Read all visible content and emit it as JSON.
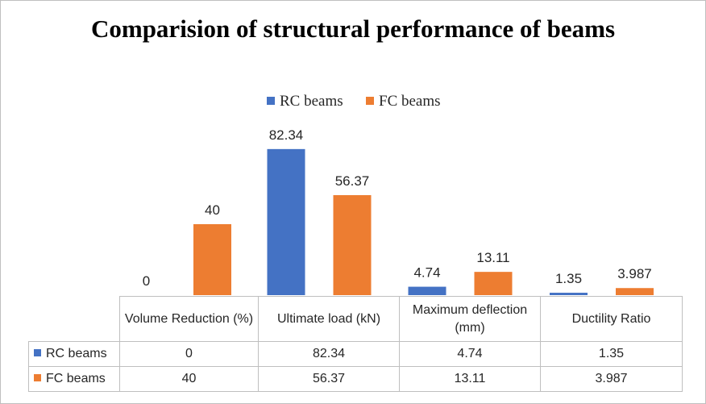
{
  "chart_data": {
    "type": "bar",
    "title": "Comparision of structural performance of beams",
    "categories": [
      "Volume Reduction (%)",
      "Ultimate load (kN)",
      "Maximum deflection (mm)",
      "Ductility Ratio"
    ],
    "series": [
      {
        "name": "RC beams",
        "color": "#4472c4",
        "values": [
          0,
          82.34,
          4.74,
          1.35
        ],
        "labels": [
          "0",
          "82.34",
          "4.74",
          "1.35"
        ]
      },
      {
        "name": "FC beams",
        "color": "#ed7d31",
        "values": [
          40,
          56.37,
          13.11,
          3.987
        ],
        "labels": [
          "40",
          "56.37",
          "13.11",
          "3.987"
        ]
      }
    ],
    "ylim": [
      0,
      100
    ],
    "xlabel": "",
    "ylabel": "",
    "legend_position": "top",
    "data_table": true
  }
}
